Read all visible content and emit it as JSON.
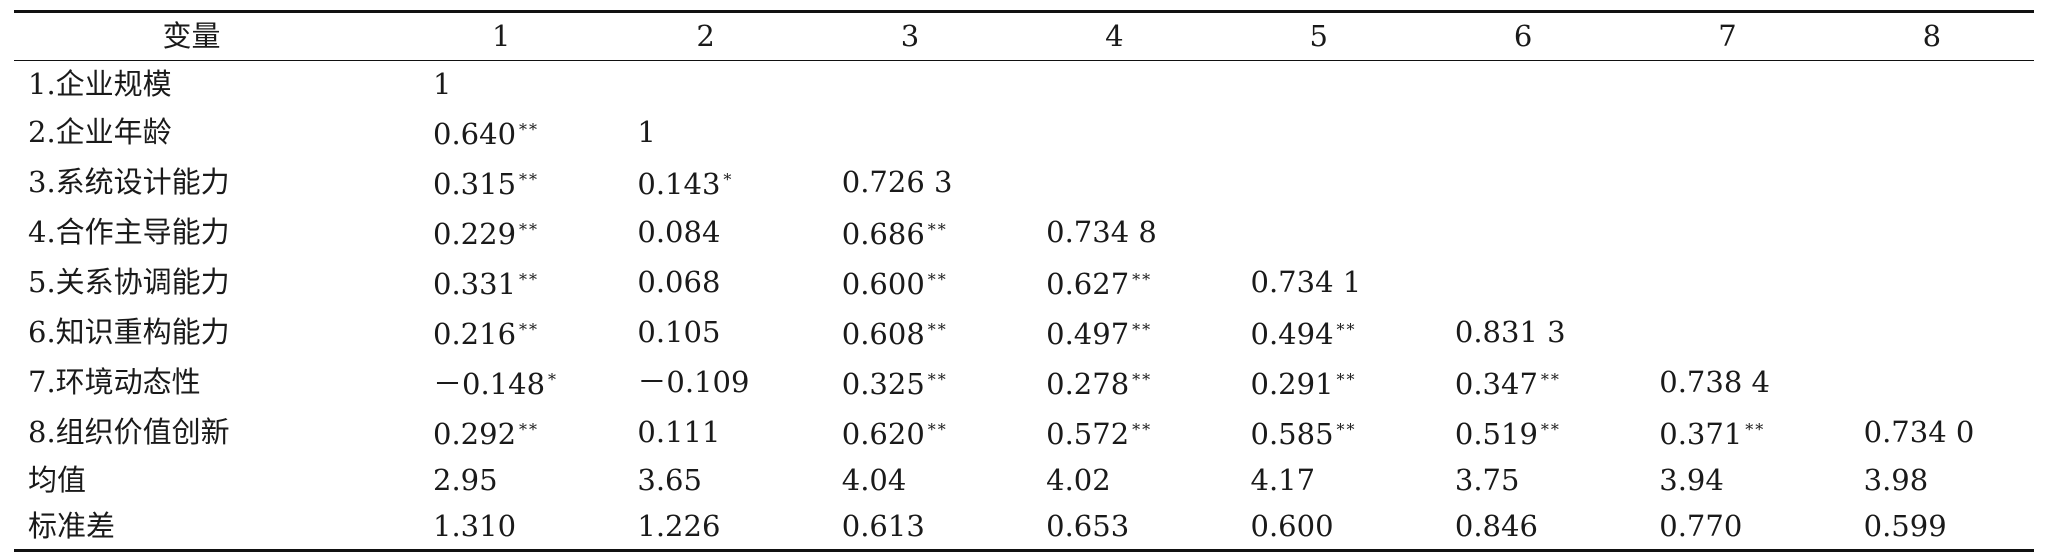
{
  "table": {
    "header": [
      "变量",
      "1",
      "2",
      "3",
      "4",
      "5",
      "6",
      "7",
      "8"
    ],
    "rows": [
      {
        "label": "1.企业规模",
        "cells": [
          [
            "1",
            ""
          ],
          [
            "",
            ""
          ],
          [
            "",
            ""
          ],
          [
            "",
            ""
          ],
          [
            "",
            ""
          ],
          [
            "",
            ""
          ],
          [
            "",
            ""
          ],
          [
            "",
            ""
          ]
        ]
      },
      {
        "label": "2.企业年龄",
        "cells": [
          [
            "0.640",
            "**"
          ],
          [
            "1",
            ""
          ],
          [
            "",
            ""
          ],
          [
            "",
            ""
          ],
          [
            "",
            ""
          ],
          [
            "",
            ""
          ],
          [
            "",
            ""
          ],
          [
            "",
            ""
          ]
        ]
      },
      {
        "label": "3.系统设计能力",
        "cells": [
          [
            "0.315",
            "**"
          ],
          [
            "0.143",
            "*"
          ],
          [
            "0.726 3",
            ""
          ],
          [
            "",
            ""
          ],
          [
            "",
            ""
          ],
          [
            "",
            ""
          ],
          [
            "",
            ""
          ],
          [
            "",
            ""
          ]
        ]
      },
      {
        "label": "4.合作主导能力",
        "cells": [
          [
            "0.229",
            "**"
          ],
          [
            "0.084",
            ""
          ],
          [
            "0.686",
            "**"
          ],
          [
            "0.734 8",
            ""
          ],
          [
            "",
            ""
          ],
          [
            "",
            ""
          ],
          [
            "",
            ""
          ],
          [
            "",
            ""
          ]
        ]
      },
      {
        "label": "5.关系协调能力",
        "cells": [
          [
            "0.331",
            "**"
          ],
          [
            "0.068",
            ""
          ],
          [
            "0.600",
            "**"
          ],
          [
            "0.627",
            "**"
          ],
          [
            "0.734 1",
            ""
          ],
          [
            "",
            ""
          ],
          [
            "",
            ""
          ],
          [
            "",
            ""
          ]
        ]
      },
      {
        "label": "6.知识重构能力",
        "cells": [
          [
            "0.216",
            "**"
          ],
          [
            "0.105",
            ""
          ],
          [
            "0.608",
            "**"
          ],
          [
            "0.497",
            "**"
          ],
          [
            "0.494",
            "**"
          ],
          [
            "0.831 3",
            ""
          ],
          [
            "",
            ""
          ],
          [
            "",
            ""
          ]
        ]
      },
      {
        "label": "7.环境动态性",
        "cells": [
          [
            "－0.148",
            "*"
          ],
          [
            "－0.109",
            ""
          ],
          [
            "0.325",
            "**"
          ],
          [
            "0.278",
            "**"
          ],
          [
            "0.291",
            "**"
          ],
          [
            "0.347",
            "**"
          ],
          [
            "0.738 4",
            ""
          ],
          [
            "",
            ""
          ]
        ]
      },
      {
        "label": "8.组织价值创新",
        "cells": [
          [
            "0.292",
            "**"
          ],
          [
            "0.111",
            ""
          ],
          [
            "0.620",
            "**"
          ],
          [
            "0.572",
            "**"
          ],
          [
            "0.585",
            "**"
          ],
          [
            "0.519",
            "**"
          ],
          [
            "0.371",
            "**"
          ],
          [
            "0.734 0",
            ""
          ]
        ]
      },
      {
        "label": "均值",
        "cells": [
          [
            "2.95",
            ""
          ],
          [
            "3.65",
            ""
          ],
          [
            "4.04",
            ""
          ],
          [
            "4.02",
            ""
          ],
          [
            "4.17",
            ""
          ],
          [
            "3.75",
            ""
          ],
          [
            "3.94",
            ""
          ],
          [
            "3.98",
            ""
          ]
        ]
      },
      {
        "label": "标准差",
        "cells": [
          [
            "1.310",
            ""
          ],
          [
            "1.226",
            ""
          ],
          [
            "0.613",
            ""
          ],
          [
            "0.653",
            ""
          ],
          [
            "0.600",
            ""
          ],
          [
            "0.846",
            ""
          ],
          [
            "0.770",
            ""
          ],
          [
            "0.599",
            ""
          ]
        ]
      }
    ]
  }
}
